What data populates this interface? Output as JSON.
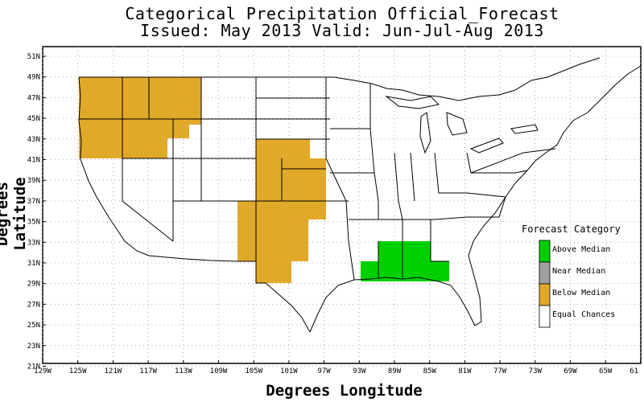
{
  "title_line1": "Categorical Precipitation Official_Forecast",
  "title_line2": "Issued: May 2013 Valid: Jun-Jul-Aug 2013",
  "ylabel": "Degrees Latitude",
  "xlabel": "Degrees Longitude",
  "lat_ticks": [
    "51N",
    "49N",
    "47N",
    "45N",
    "43N",
    "41N",
    "39N",
    "37N",
    "35N",
    "33N",
    "31N",
    "29N",
    "27N",
    "25N",
    "23N",
    "21N"
  ],
  "lon_ticks": [
    "129W",
    "125W",
    "121W",
    "117W",
    "113W",
    "109W",
    "105W",
    "101W",
    "97W",
    "93W",
    "89W",
    "85W",
    "81W",
    "77W",
    "73W",
    "69W",
    "65W",
    "61"
  ],
  "legend": {
    "title": "Forecast Category",
    "items": [
      {
        "label": "Above Median",
        "color": "#00d000"
      },
      {
        "label": "Near Median",
        "color": "#a0a0a0"
      },
      {
        "label": "Below Median",
        "color": "#e1a92a"
      },
      {
        "label": "Equal Chances",
        "color": "#ffffff"
      }
    ]
  },
  "colors": {
    "below_median": "#e1a92a",
    "above_median": "#00d000",
    "grid": "#9a9a9a"
  }
}
